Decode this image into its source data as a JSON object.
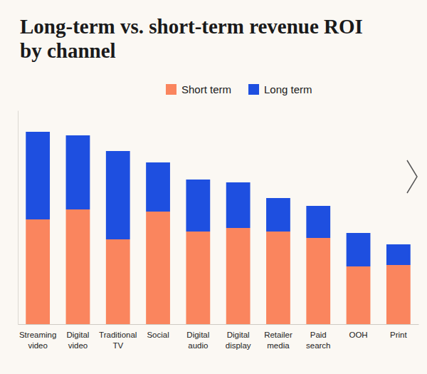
{
  "chart_data": {
    "type": "bar",
    "title": "Long-term vs. short-term revenue ROI by channel",
    "categories": [
      "Streaming video",
      "Digital video",
      "Traditional TV",
      "Social",
      "Digital audio",
      "Digital display",
      "Retailer media",
      "Paid search",
      "OOH",
      "Print"
    ],
    "series": [
      {
        "name": "Short term",
        "color": "#fa855e",
        "values": [
          1.47,
          1.61,
          1.19,
          1.58,
          1.3,
          1.35,
          1.3,
          1.21,
          0.81,
          0.83
        ]
      },
      {
        "name": "Long term",
        "color": "#1e4fe0",
        "values": [
          1.23,
          1.04,
          1.24,
          0.69,
          0.73,
          0.64,
          0.47,
          0.45,
          0.47,
          0.29
        ]
      }
    ],
    "stacked": true,
    "ylim": [
      0,
      3
    ],
    "tick_labels": "x",
    "grid": false,
    "legend": "top"
  }
}
